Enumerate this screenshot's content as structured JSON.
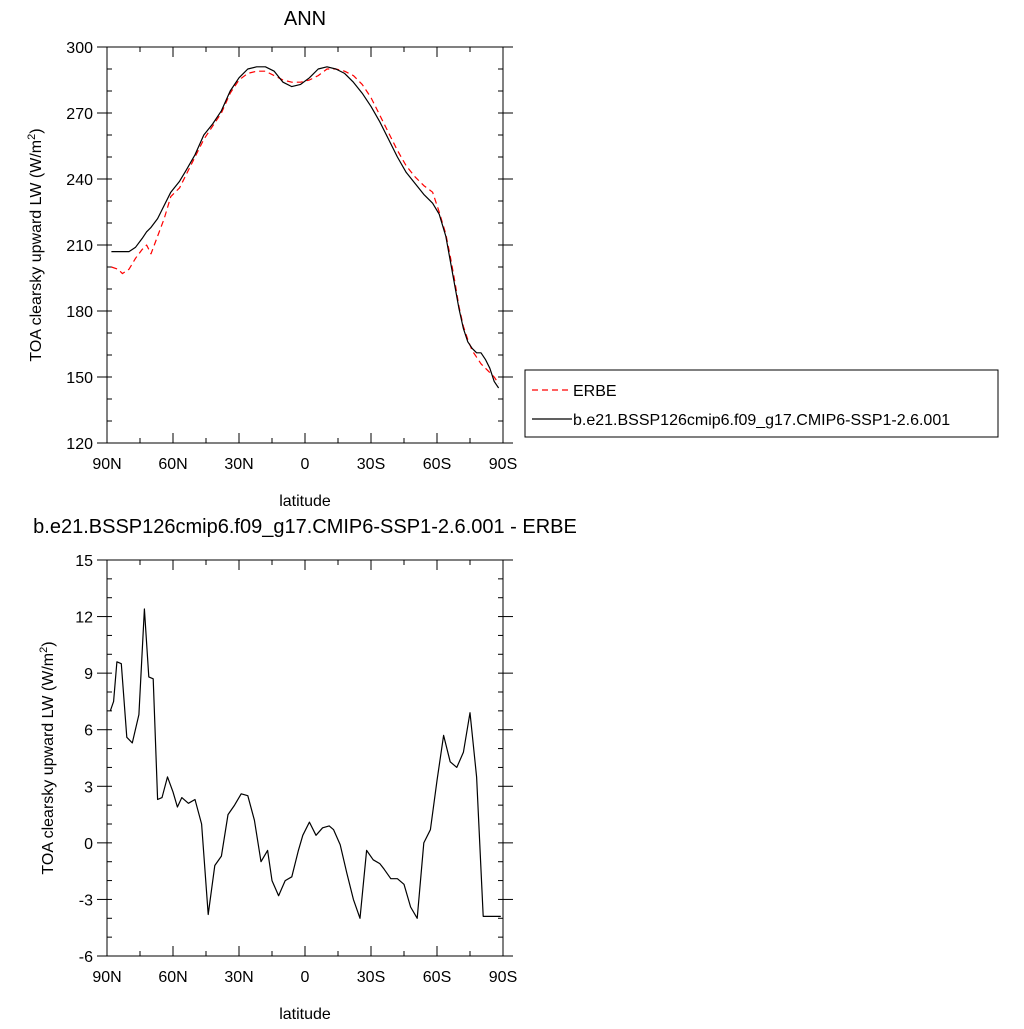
{
  "chart_data": [
    {
      "type": "line",
      "title": "ANN",
      "xlabel": "latitude",
      "ylabel": "TOA clearsky upward LW (W/m",
      "ylabel_sup": "2",
      "ylabel_close": ")",
      "xlim": [
        90,
        -90
      ],
      "ylim": [
        120,
        300
      ],
      "x_ticks": [
        {
          "value": 90,
          "label": "90N"
        },
        {
          "value": 60,
          "label": "60N"
        },
        {
          "value": 30,
          "label": "30N"
        },
        {
          "value": 0,
          "label": "0"
        },
        {
          "value": -30,
          "label": "30S"
        },
        {
          "value": -60,
          "label": "60S"
        },
        {
          "value": -90,
          "label": "90S"
        }
      ],
      "y_ticks": [
        {
          "value": 120,
          "label": "120"
        },
        {
          "value": 150,
          "label": "150"
        },
        {
          "value": 180,
          "label": "180"
        },
        {
          "value": 210,
          "label": "210"
        },
        {
          "value": 240,
          "label": "240"
        },
        {
          "value": 270,
          "label": "270"
        },
        {
          "value": 300,
          "label": "300"
        }
      ],
      "legend_position": "right",
      "series": [
        {
          "name": "ERBE",
          "color": "#ff0000",
          "dash": true,
          "x": [
            88,
            85,
            83,
            80,
            77,
            74,
            72,
            70,
            67,
            64,
            61,
            57,
            54,
            50,
            46,
            42,
            38,
            34,
            30,
            26,
            22,
            18,
            14,
            10,
            6,
            2,
            -2,
            -6,
            -10,
            -14,
            -18,
            -22,
            -26,
            -30,
            -34,
            -38,
            -42,
            -46,
            -50,
            -54,
            -58,
            -61,
            -64,
            -66,
            -68,
            -70,
            -72,
            -74,
            -76,
            -78,
            -80,
            -82,
            -84,
            -86,
            -88
          ],
          "y": [
            200,
            199,
            197,
            199,
            204,
            208,
            210,
            206,
            214,
            222,
            232,
            236,
            242,
            250,
            258,
            264,
            270,
            279,
            285,
            288,
            289,
            289,
            287,
            285,
            284,
            284,
            285,
            287,
            290,
            290,
            289,
            287,
            283,
            277,
            269,
            261,
            253,
            246,
            241,
            237,
            234,
            225,
            215,
            205,
            194,
            182,
            173,
            167,
            162,
            159,
            156,
            154,
            152,
            150,
            147
          ]
        },
        {
          "name": "b.e21.BSSP126cmip6.f09_g17.CMIP6-SSP1-2.6.001",
          "color": "#000000",
          "dash": false,
          "x": [
            88,
            85,
            83,
            80,
            77,
            74,
            72,
            70,
            67,
            64,
            61,
            57,
            54,
            50,
            46,
            42,
            38,
            34,
            30,
            26,
            22,
            18,
            14,
            10,
            6,
            2,
            -2,
            -6,
            -10,
            -14,
            -18,
            -22,
            -26,
            -30,
            -34,
            -38,
            -42,
            -46,
            -50,
            -54,
            -58,
            -61,
            -64,
            -66,
            -68,
            -70,
            -72,
            -74,
            -76,
            -78,
            -80,
            -82,
            -84,
            -86,
            -88
          ],
          "y": [
            207,
            207,
            207,
            207,
            209,
            213,
            216,
            218,
            222,
            228,
            234,
            239,
            244,
            251,
            260,
            265,
            271,
            280,
            286,
            290,
            291,
            291,
            289,
            284,
            282,
            283,
            286,
            290,
            291,
            290,
            288,
            284,
            279,
            273,
            266,
            258,
            250,
            243,
            238,
            233,
            229,
            224,
            214,
            203,
            192,
            181,
            172,
            166,
            163,
            161,
            161,
            158,
            154,
            148,
            145
          ]
        }
      ]
    },
    {
      "type": "line",
      "title": "b.e21.BSSP126cmip6.f09_g17.CMIP6-SSP1-2.6.001 - ERBE",
      "xlabel": "latitude",
      "ylabel": "TOA clearsky upward LW (W/m",
      "ylabel_sup": "2",
      "ylabel_close": ")",
      "xlim": [
        90,
        -90
      ],
      "ylim": [
        -6,
        15
      ],
      "x_ticks": [
        {
          "value": 90,
          "label": "90N"
        },
        {
          "value": 60,
          "label": "60N"
        },
        {
          "value": 30,
          "label": "30N"
        },
        {
          "value": 0,
          "label": "0"
        },
        {
          "value": -30,
          "label": "30S"
        },
        {
          "value": -60,
          "label": "60S"
        },
        {
          "value": -90,
          "label": "90S"
        }
      ],
      "y_ticks": [
        {
          "value": -6,
          "label": "-6"
        },
        {
          "value": -3,
          "label": "-3"
        },
        {
          "value": 0,
          "label": "0"
        },
        {
          "value": 3,
          "label": "3"
        },
        {
          "value": 6,
          "label": "6"
        },
        {
          "value": 9,
          "label": "9"
        },
        {
          "value": 12,
          "label": "12"
        },
        {
          "value": 15,
          "label": "15"
        }
      ],
      "series": [
        {
          "name": "",
          "color": "#000000",
          "dash": false,
          "x": [
            88.5,
            87,
            85.5,
            83.5,
            81,
            78.5,
            75.5,
            73,
            71,
            69,
            67,
            65,
            62.5,
            60,
            58,
            56,
            53,
            50,
            47,
            44,
            41,
            38,
            35,
            32,
            29,
            26,
            23,
            20,
            17,
            15,
            12,
            9,
            6,
            3,
            1,
            -2,
            -5,
            -8,
            -11,
            -13,
            -16,
            -19,
            -22,
            -25,
            -28,
            -31,
            -34,
            -36,
            -39,
            -42,
            -45,
            -48,
            -51,
            -54,
            -57,
            -60,
            -63,
            -66,
            -69,
            -72,
            -75,
            -78,
            -81,
            -84,
            -87,
            -89
          ],
          "y": [
            7,
            7.5,
            9.6,
            9.5,
            5.6,
            5.3,
            6.8,
            12.4,
            8.8,
            8.7,
            2.3,
            2.4,
            3.5,
            2.7,
            1.9,
            2.4,
            2.1,
            2.3,
            1.0,
            -3.8,
            -1.2,
            -0.7,
            1.5,
            2.0,
            2.6,
            2.5,
            1.2,
            -1.0,
            -0.4,
            -2.0,
            -2.8,
            -2.0,
            -1.8,
            -0.4,
            0.4,
            1.1,
            0.4,
            0.8,
            0.9,
            0.7,
            -0.1,
            -1.6,
            -3.0,
            -4.0,
            -0.4,
            -0.9,
            -1.1,
            -1.4,
            -1.9,
            -1.9,
            -2.2,
            -3.4,
            -4.0,
            0.0,
            0.7,
            3.3,
            5.7,
            4.3,
            4.0,
            4.8,
            6.9,
            3.5,
            -3.9,
            -3.9,
            -3.9,
            -3.9
          ]
        }
      ]
    }
  ]
}
